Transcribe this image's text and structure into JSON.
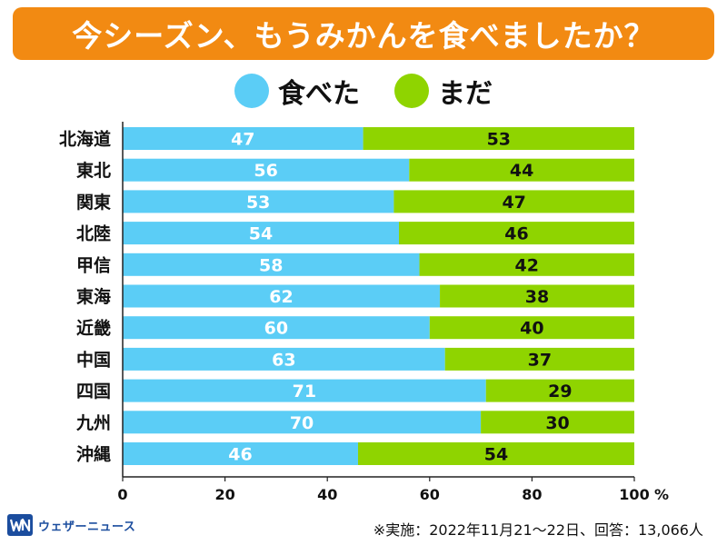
{
  "title": "今シーズン、もうみかんを食べましたか？",
  "colors": {
    "title_bg": "#f28a12",
    "ate": "#5bcdf6",
    "not_yet": "#8fd400"
  },
  "legend": [
    {
      "label": "食べた",
      "color": "#5bcdf6"
    },
    {
      "label": "まだ",
      "color": "#8fd400"
    }
  ],
  "chart_data": {
    "type": "bar",
    "orientation": "horizontal",
    "stacked": true,
    "categories": [
      "北海道",
      "東北",
      "関東",
      "北陸",
      "甲信",
      "東海",
      "近畿",
      "中国",
      "四国",
      "九州",
      "沖縄"
    ],
    "series": [
      {
        "name": "食べた",
        "values": [
          47,
          56,
          53,
          54,
          58,
          62,
          60,
          63,
          71,
          70,
          46
        ]
      },
      {
        "name": "まだ",
        "values": [
          53,
          44,
          47,
          46,
          42,
          38,
          40,
          37,
          29,
          30,
          54
        ]
      }
    ],
    "xlim": [
      0,
      100
    ],
    "xticks": [
      0,
      20,
      40,
      60,
      80,
      100
    ],
    "xunit": "%",
    "grid": false,
    "legend_position": "top-center"
  },
  "footer": {
    "logo_text": "ウェザーニュース",
    "note": "※実施：2022年11月21～22日、回答：13,066人"
  }
}
